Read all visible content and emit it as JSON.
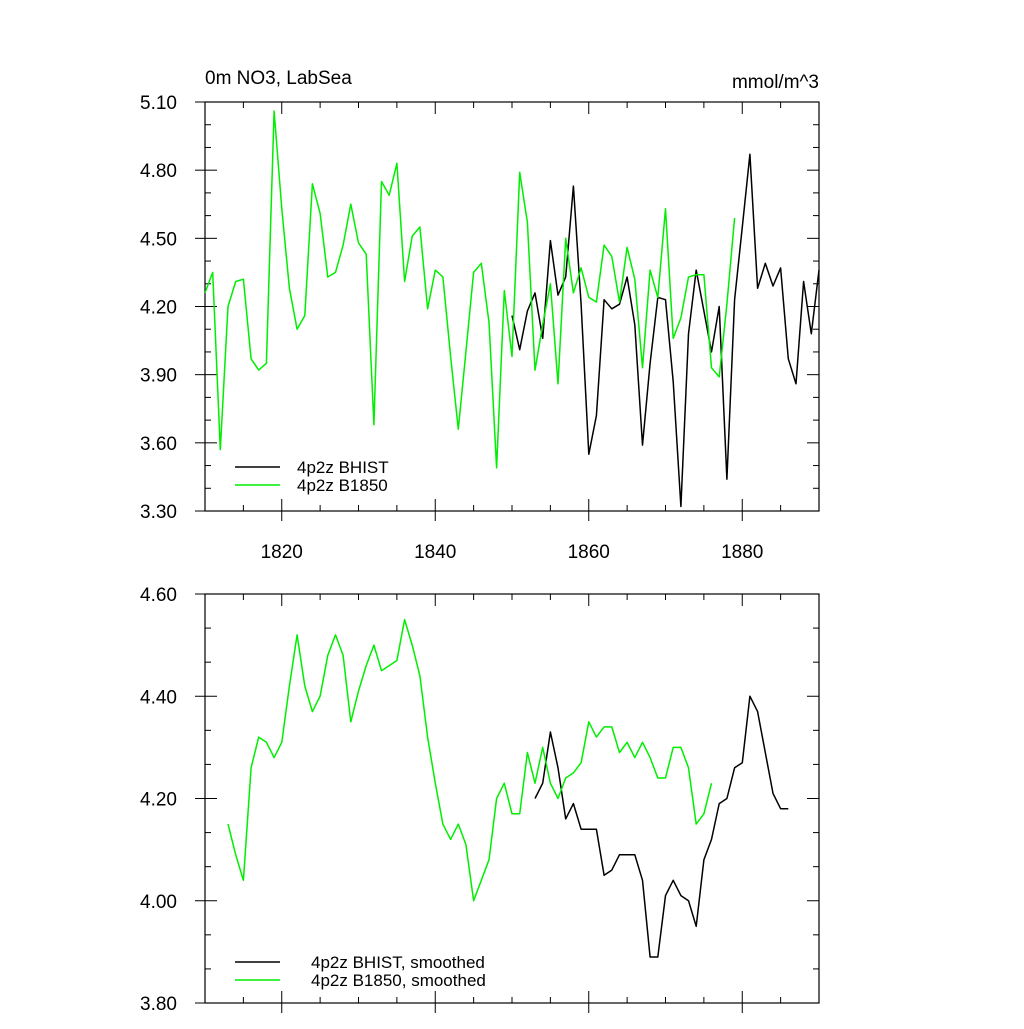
{
  "chart_data": [
    {
      "type": "line",
      "title": "0m NO3, LabSea",
      "units_label": "mmol/m^3",
      "xlim": [
        1810,
        1890
      ],
      "ylim": [
        3.3,
        5.1
      ],
      "yticks": [
        3.3,
        3.6,
        3.9,
        4.2,
        4.5,
        4.8,
        5.1
      ],
      "ytick_labels": [
        "3.30",
        "3.60",
        "3.90",
        "4.20",
        "4.50",
        "4.80",
        "5.10"
      ],
      "xticks": [
        1820,
        1840,
        1860,
        1880
      ],
      "xtick_labels": [
        "1820",
        "1840",
        "1860",
        "1880"
      ],
      "grid": false,
      "legend_position": "bottom-left",
      "series": [
        {
          "name": "4p2z BHIST",
          "color": "#000000",
          "x": [
            1850,
            1851,
            1852,
            1853,
            1854,
            1855,
            1856,
            1857,
            1858,
            1859,
            1860,
            1861,
            1862,
            1863,
            1864,
            1865,
            1866,
            1867,
            1868,
            1869,
            1870,
            1871,
            1872,
            1873,
            1874,
            1875,
            1876,
            1877,
            1878,
            1879,
            1880,
            1881,
            1882,
            1883,
            1884,
            1885,
            1886,
            1887,
            1888,
            1889,
            1890
          ],
          "values": [
            4.16,
            4.01,
            4.18,
            4.26,
            4.06,
            4.49,
            4.25,
            4.33,
            4.73,
            4.21,
            3.55,
            3.72,
            4.23,
            4.19,
            4.21,
            4.33,
            4.12,
            3.59,
            3.95,
            4.24,
            4.23,
            3.87,
            3.32,
            4.08,
            4.36,
            4.18,
            4.0,
            4.2,
            3.44,
            4.23,
            4.55,
            4.87,
            4.28,
            4.39,
            4.29,
            4.37,
            3.97,
            3.86,
            4.31,
            4.08,
            4.36
          ]
        },
        {
          "name": "4p2z B1850",
          "color": "#00ee00",
          "x": [
            1810,
            1811,
            1812,
            1813,
            1814,
            1815,
            1816,
            1817,
            1818,
            1819,
            1820,
            1821,
            1822,
            1823,
            1824,
            1825,
            1826,
            1827,
            1828,
            1829,
            1830,
            1831,
            1832,
            1833,
            1834,
            1835,
            1836,
            1837,
            1838,
            1839,
            1840,
            1841,
            1842,
            1843,
            1844,
            1845,
            1846,
            1847,
            1848,
            1849,
            1850,
            1851,
            1852,
            1853,
            1854,
            1855,
            1856,
            1857,
            1858,
            1859,
            1860,
            1861,
            1862,
            1863,
            1864,
            1865,
            1866,
            1867,
            1868,
            1869,
            1870,
            1871,
            1872,
            1873,
            1874,
            1875,
            1876,
            1877,
            1878,
            1879
          ],
          "values": [
            4.26,
            4.35,
            3.57,
            4.2,
            4.31,
            4.32,
            3.97,
            3.92,
            3.95,
            5.06,
            4.63,
            4.28,
            4.1,
            4.16,
            4.74,
            4.61,
            4.33,
            4.35,
            4.47,
            4.65,
            4.48,
            4.43,
            3.68,
            4.75,
            4.69,
            4.83,
            4.31,
            4.51,
            4.55,
            4.19,
            4.36,
            4.33,
            3.98,
            3.66,
            4.0,
            4.35,
            4.39,
            4.13,
            3.49,
            4.27,
            3.98,
            4.79,
            4.57,
            3.92,
            4.12,
            4.3,
            3.86,
            4.5,
            4.26,
            4.37,
            4.24,
            4.22,
            4.47,
            4.42,
            4.22,
            4.46,
            4.32,
            3.93,
            4.36,
            4.24,
            4.63,
            4.06,
            4.15,
            4.33,
            4.34,
            4.34,
            3.93,
            3.89,
            4.21,
            4.59
          ]
        }
      ]
    },
    {
      "type": "line",
      "title": "",
      "xlim": [
        1810,
        1890
      ],
      "ylim": [
        3.8,
        4.6
      ],
      "yticks": [
        3.8,
        4.0,
        4.2,
        4.4,
        4.6
      ],
      "ytick_labels": [
        "3.80",
        "4.00",
        "4.20",
        "4.40",
        "4.60"
      ],
      "xticks": [
        1820,
        1840,
        1860,
        1880
      ],
      "xtick_labels": [],
      "grid": false,
      "legend_position": "bottom-left",
      "series": [
        {
          "name": "4p2z BHIST, smoothed",
          "color": "#000000",
          "x": [
            1853,
            1854,
            1855,
            1856,
            1857,
            1858,
            1859,
            1860,
            1861,
            1862,
            1863,
            1864,
            1865,
            1866,
            1867,
            1868,
            1869,
            1870,
            1871,
            1872,
            1873,
            1874,
            1875,
            1876,
            1877,
            1878,
            1879,
            1880,
            1881,
            1882,
            1883,
            1884,
            1885,
            1886
          ],
          "values": [
            4.2,
            4.23,
            4.33,
            4.26,
            4.16,
            4.19,
            4.14,
            4.14,
            4.14,
            4.05,
            4.06,
            4.09,
            4.09,
            4.09,
            4.04,
            3.89,
            3.89,
            4.01,
            4.04,
            4.01,
            4.0,
            3.95,
            4.08,
            4.12,
            4.19,
            4.2,
            4.26,
            4.27,
            4.4,
            4.37,
            4.29,
            4.21,
            4.18,
            4.18
          ]
        },
        {
          "name": "4p2z B1850, smoothed",
          "color": "#00ee00",
          "x": [
            1813,
            1814,
            1815,
            1816,
            1817,
            1818,
            1819,
            1820,
            1821,
            1822,
            1823,
            1824,
            1825,
            1826,
            1827,
            1828,
            1829,
            1830,
            1831,
            1832,
            1833,
            1834,
            1835,
            1836,
            1837,
            1838,
            1839,
            1840,
            1841,
            1842,
            1843,
            1844,
            1845,
            1846,
            1847,
            1848,
            1849,
            1850,
            1851,
            1852,
            1853,
            1854,
            1855,
            1856,
            1857,
            1858,
            1859,
            1860,
            1861,
            1862,
            1863,
            1864,
            1865,
            1866,
            1867,
            1868,
            1869,
            1870,
            1871,
            1872,
            1873,
            1874,
            1875,
            1876
          ],
          "values": [
            4.15,
            4.09,
            4.04,
            4.26,
            4.32,
            4.31,
            4.28,
            4.31,
            4.42,
            4.52,
            4.42,
            4.37,
            4.4,
            4.48,
            4.52,
            4.48,
            4.35,
            4.41,
            4.46,
            4.5,
            4.45,
            4.46,
            4.47,
            4.55,
            4.5,
            4.44,
            4.32,
            4.23,
            4.15,
            4.12,
            4.15,
            4.11,
            4.0,
            4.04,
            4.08,
            4.2,
            4.23,
            4.17,
            4.17,
            4.29,
            4.23,
            4.3,
            4.23,
            4.2,
            4.24,
            4.25,
            4.27,
            4.35,
            4.32,
            4.34,
            4.34,
            4.29,
            4.31,
            4.28,
            4.31,
            4.28,
            4.24,
            4.24,
            4.3,
            4.3,
            4.26,
            4.15,
            4.17,
            4.23
          ]
        }
      ]
    }
  ]
}
